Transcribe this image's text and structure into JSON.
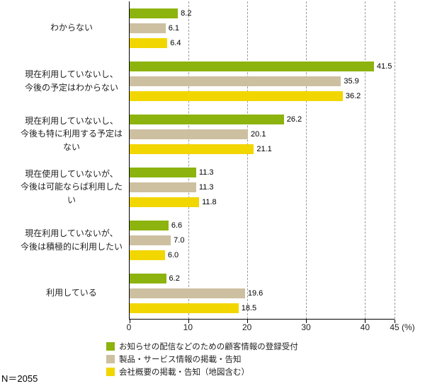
{
  "chart_data": {
    "type": "bar",
    "orientation": "horizontal",
    "categories": [
      "わからない",
      "現在利用していないし、\n今後の予定はわからない",
      "現在利用していないし、\n今後も特に利用する予定はない",
      "現在使用していないが、\n今後は可能ならば利用したい",
      "現在利用していないが、\n今後は積極的に利用したい",
      "利用している"
    ],
    "series": [
      {
        "name": "お知らせの配信などのための顧客情報の登録受付",
        "color": "#8CB30E",
        "values": [
          8.2,
          41.5,
          26.2,
          11.3,
          6.6,
          6.2
        ]
      },
      {
        "name": "製品・サービス情報の掲載・告知",
        "color": "#CDC0A0",
        "values": [
          6.1,
          35.9,
          20.1,
          11.3,
          7.0,
          19.6
        ]
      },
      {
        "name": "会社概要の掲載・告知（地図含む）",
        "color": "#F2D600",
        "values": [
          6.4,
          36.2,
          21.1,
          11.8,
          6.0,
          18.5
        ]
      }
    ],
    "xlim": [
      0,
      45
    ],
    "xticks": [
      0,
      10,
      20,
      30,
      40,
      45
    ],
    "x_unit": "(%)",
    "grid": "dashed-vertical",
    "legend_position": "bottom",
    "footnote": "N＝2055"
  }
}
